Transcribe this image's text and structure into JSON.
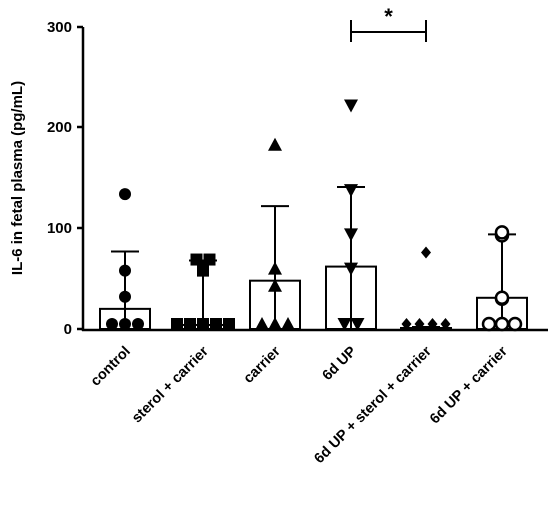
{
  "chart_data": {
    "type": "bar",
    "ylabel": "IL-6 in fetal plasma (pg/mL)",
    "ylim": [
      0,
      300
    ],
    "yticks": [
      0,
      100,
      200,
      300
    ],
    "categories": [
      "control",
      "sterol + carrier",
      "carrier",
      "6d UP",
      "6d UP + sterol + carrier",
      "6d UP + carrier"
    ],
    "values": [
      20,
      4,
      48,
      62,
      1,
      31
    ],
    "error_upper": [
      77,
      68,
      122,
      141,
      2,
      94
    ],
    "error_lower": [
      0,
      0,
      0,
      0,
      0,
      0
    ],
    "markers": [
      "circle-filled",
      "square-filled",
      "triangle-up-filled",
      "triangle-down-filled",
      "diamond-filled",
      "circle-open"
    ],
    "points": [
      [
        0,
        0,
        0,
        32,
        58,
        134
      ],
      [
        0,
        0,
        0,
        0,
        0,
        58,
        69,
        69
      ],
      [
        0,
        0,
        0,
        43,
        60,
        183
      ],
      [
        0,
        0,
        60,
        94,
        138,
        222
      ],
      [
        0,
        0,
        0,
        0,
        76
      ],
      [
        0,
        0,
        0,
        30,
        31,
        93,
        96
      ]
    ],
    "significance": {
      "from": 3,
      "to": 4,
      "label": "*"
    }
  }
}
